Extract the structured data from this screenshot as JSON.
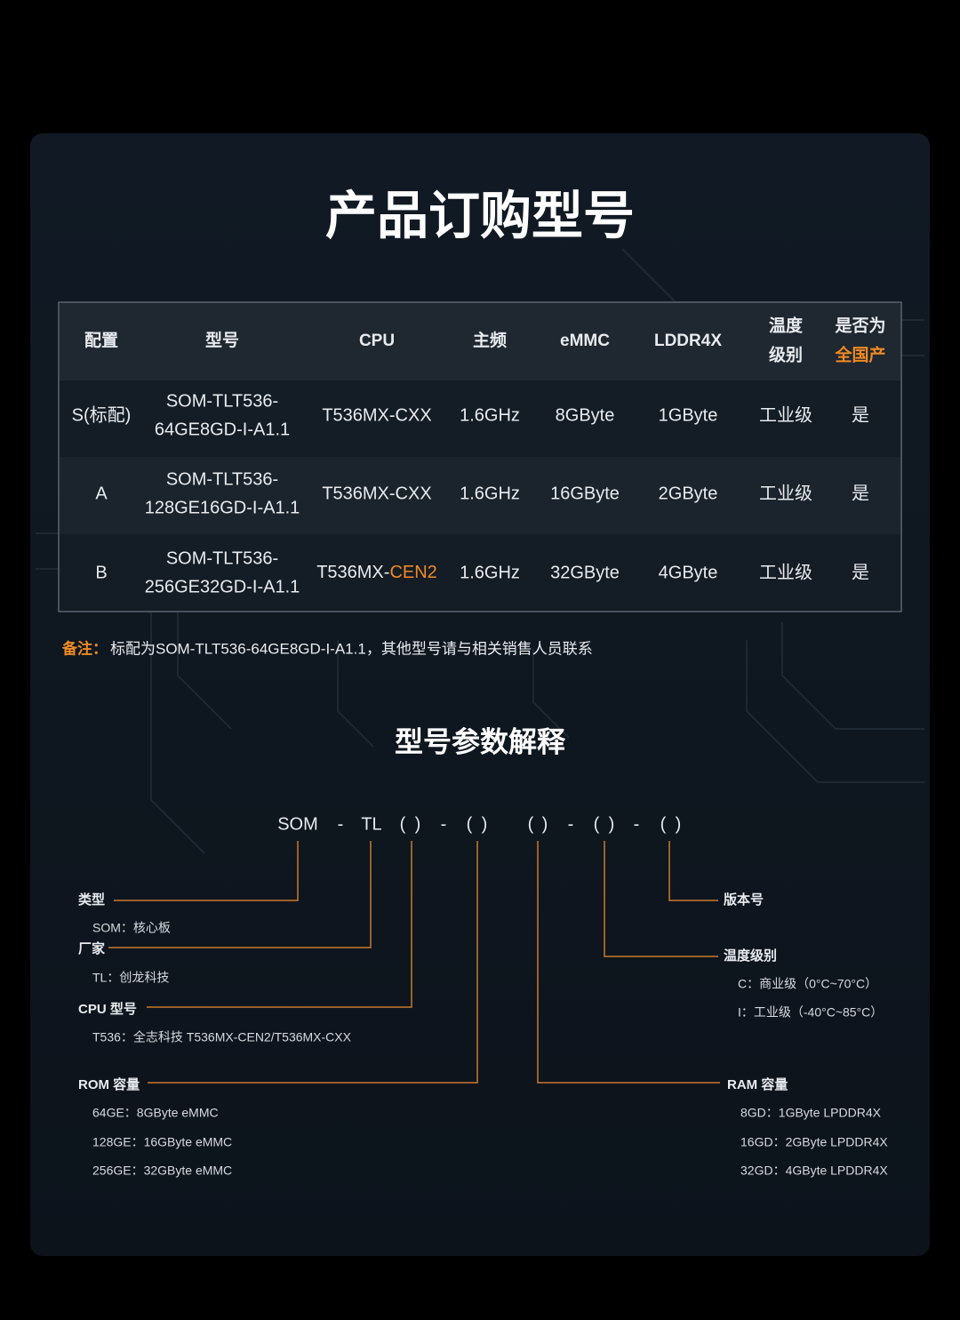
{
  "header": {
    "title": "产品订购型号"
  },
  "table": {
    "columns": [
      [
        "配置"
      ],
      [
        "型号"
      ],
      [
        "CPU"
      ],
      [
        "主频"
      ],
      [
        "eMMC"
      ],
      [
        "LDDR4X"
      ],
      [
        "温度",
        "级别"
      ],
      [
        "是否为",
        "全国产"
      ]
    ],
    "rows": [
      [
        [
          "S(标配)"
        ],
        [
          "SOM-TLT536-",
          "64GE8GD-I-A1.1"
        ],
        [
          "T536MX-CXX"
        ],
        [
          "1.6GHz"
        ],
        [
          "8GByte"
        ],
        [
          "1GByte"
        ],
        [
          "工业级"
        ],
        [
          "是"
        ]
      ],
      [
        [
          "A"
        ],
        [
          "SOM-TLT536-",
          "128GE16GD-I-A1.1"
        ],
        [
          "T536MX-CXX"
        ],
        [
          "1.6GHz"
        ],
        [
          "16GByte"
        ],
        [
          "2GByte"
        ],
        [
          "工业级"
        ],
        [
          "是"
        ]
      ],
      [
        [
          "B"
        ],
        [
          "SOM-TLT536-",
          "256GE32GD-I-A1.1"
        ],
        [
          [
            "T536MX-",
            "CEN2"
          ]
        ],
        [
          "1.6GHz"
        ],
        [
          "32GByte"
        ],
        [
          "4GByte"
        ],
        [
          "工业级"
        ],
        [
          "是"
        ]
      ]
    ]
  },
  "note": {
    "label": "备注：",
    "text": "标配为SOM-TLT536-64GE8GD-I-A1.1，其他型号请与相关销售人员联系"
  },
  "explanation": {
    "subtitle": "型号参数解释",
    "code": [
      "SOM",
      "-",
      "TL",
      "(",
      ")",
      "-",
      "(",
      ")",
      "(",
      ")",
      "-",
      "(",
      ")",
      "-",
      "(",
      ")"
    ],
    "groups": [
      {
        "label": "类型",
        "items": [
          "SOM：核心板"
        ]
      },
      {
        "label": "厂家",
        "items": [
          "TL：创龙科技"
        ]
      },
      {
        "label": "CPU 型号",
        "items": [
          "T536：全志科技 T536MX-CEN2/T536MX-CXX"
        ]
      },
      {
        "label": "ROM 容量",
        "items": [
          "64GE：8GByte eMMC",
          "128GE：16GByte eMMC",
          "256GE：32GByte eMMC"
        ]
      },
      {
        "label": "版本号",
        "items": []
      },
      {
        "label": "温度级别",
        "items": [
          "C：商业级（0°C~70°C）",
          "I：工业级（-40°C~85°C）"
        ]
      },
      {
        "label": "RAM 容量",
        "items": [
          "8GD：1GByte LPDDR4X",
          "16GD：2GByte LPDDR4X",
          "32GD：4GByte LPDDR4X"
        ]
      }
    ]
  }
}
